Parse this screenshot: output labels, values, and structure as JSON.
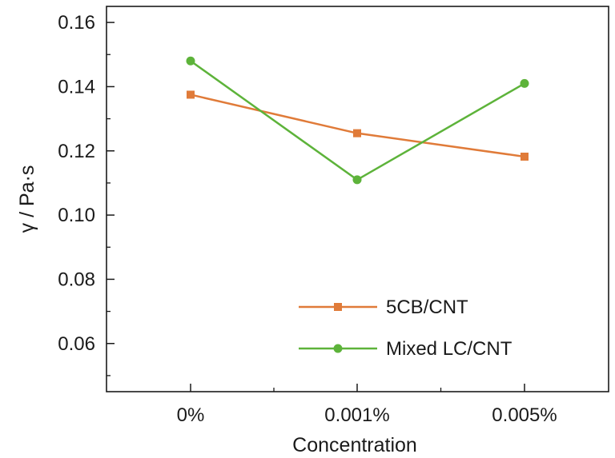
{
  "chart_data": {
    "type": "line",
    "title": "",
    "xlabel": "Concentration",
    "ylabel": "γ / Pa·s",
    "categories": [
      "0%",
      "0.001%",
      "0.005%"
    ],
    "ylim": [
      0.045,
      0.165
    ],
    "yticks": [
      0.06,
      0.08,
      0.1,
      0.12,
      0.14,
      0.16
    ],
    "ytick_labels": [
      "0.06",
      "0.08",
      "0.10",
      "0.12",
      "0.14",
      "0.16"
    ],
    "grid": false,
    "legend_position": "lower-right",
    "series": [
      {
        "name": "5CB/CNT",
        "values": [
          0.1375,
          0.1255,
          0.1182
        ],
        "color": "#E07B39",
        "marker": "square"
      },
      {
        "name": "Mixed LC/CNT",
        "values": [
          0.148,
          0.111,
          0.141
        ],
        "color": "#5DB33A",
        "marker": "circle"
      }
    ]
  }
}
